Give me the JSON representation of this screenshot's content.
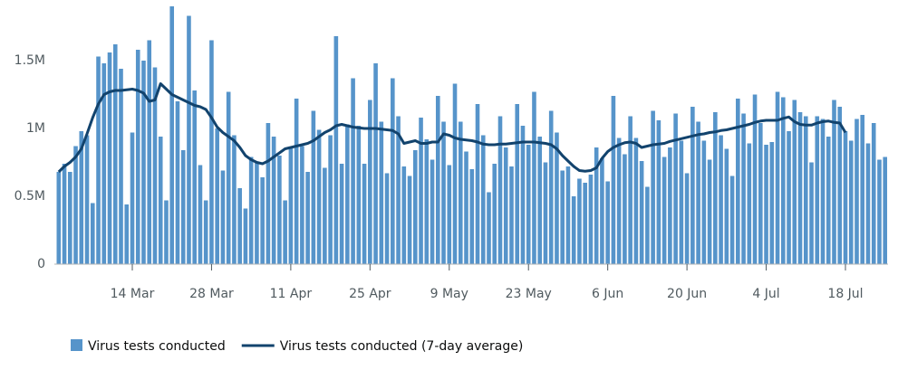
{
  "chart_data": {
    "type": "bar",
    "categories": [
      "1 Mar",
      "2 Mar",
      "3 Mar",
      "4 Mar",
      "5 Mar",
      "6 Mar",
      "7 Mar",
      "8 Mar",
      "9 Mar",
      "10 Mar",
      "11 Mar",
      "12 Mar",
      "13 Mar",
      "14 Mar",
      "15 Mar",
      "16 Mar",
      "17 Mar",
      "18 Mar",
      "19 Mar",
      "20 Mar",
      "21 Mar",
      "22 Mar",
      "23 Mar",
      "24 Mar",
      "25 Mar",
      "26 Mar",
      "27 Mar",
      "28 Mar",
      "29 Mar",
      "30 Mar",
      "31 Mar",
      "1 Apr",
      "2 Apr",
      "3 Apr",
      "4 Apr",
      "5 Apr",
      "6 Apr",
      "7 Apr",
      "8 Apr",
      "9 Apr",
      "10 Apr",
      "11 Apr",
      "12 Apr",
      "13 Apr",
      "14 Apr",
      "15 Apr",
      "16 Apr",
      "17 Apr",
      "18 Apr",
      "19 Apr",
      "20 Apr",
      "21 Apr",
      "22 Apr",
      "23 Apr",
      "24 Apr",
      "25 Apr",
      "26 Apr",
      "27 Apr",
      "28 Apr",
      "29 Apr",
      "30 Apr",
      "1 May",
      "2 May",
      "3 May",
      "4 May",
      "5 May",
      "6 May",
      "7 May",
      "8 May",
      "9 May",
      "10 May",
      "11 May",
      "12 May",
      "13 May",
      "14 May",
      "15 May",
      "16 May",
      "17 May",
      "18 May",
      "19 May",
      "20 May",
      "21 May",
      "22 May",
      "23 May",
      "24 May",
      "25 May",
      "26 May",
      "27 May",
      "28 May",
      "29 May",
      "30 May",
      "31 May",
      "1 Jun",
      "2 Jun",
      "3 Jun",
      "4 Jun",
      "5 Jun",
      "6 Jun",
      "7 Jun",
      "8 Jun",
      "9 Jun",
      "10 Jun",
      "11 Jun",
      "12 Jun",
      "13 Jun",
      "14 Jun",
      "15 Jun",
      "16 Jun",
      "17 Jun",
      "18 Jun",
      "19 Jun",
      "20 Jun",
      "21 Jun",
      "22 Jun",
      "23 Jun",
      "24 Jun",
      "25 Jun",
      "26 Jun",
      "27 Jun",
      "28 Jun",
      "29 Jun",
      "30 Jun",
      "1 Jul",
      "2 Jul",
      "3 Jul",
      "4 Jul",
      "5 Jul",
      "6 Jul",
      "7 Jul",
      "8 Jul",
      "9 Jul",
      "10 Jul",
      "11 Jul",
      "12 Jul",
      "13 Jul",
      "14 Jul",
      "15 Jul",
      "16 Jul",
      "17 Jul",
      "18 Jul",
      "19 Jul",
      "20 Jul",
      "21 Jul",
      "22 Jul",
      "23 Jul",
      "24 Jul",
      "25 Jul"
    ],
    "series": [
      {
        "name": "Virus tests conducted",
        "color": "#5694ca",
        "values": [
          680000,
          740000,
          680000,
          870000,
          980000,
          950000,
          450000,
          1530000,
          1480000,
          1560000,
          1620000,
          1440000,
          440000,
          970000,
          1580000,
          1500000,
          1650000,
          1450000,
          940000,
          470000,
          1900000,
          1200000,
          840000,
          1830000,
          1280000,
          730000,
          470000,
          1650000,
          1000000,
          690000,
          1270000,
          950000,
          560000,
          410000,
          790000,
          750000,
          640000,
          1040000,
          940000,
          800000,
          470000,
          860000,
          1220000,
          870000,
          680000,
          1130000,
          990000,
          710000,
          950000,
          1680000,
          740000,
          1030000,
          1370000,
          1020000,
          740000,
          1210000,
          1480000,
          1050000,
          670000,
          1370000,
          1090000,
          720000,
          650000,
          840000,
          1080000,
          920000,
          770000,
          1240000,
          1050000,
          730000,
          1330000,
          1050000,
          830000,
          700000,
          1180000,
          950000,
          530000,
          740000,
          1090000,
          860000,
          720000,
          1180000,
          1020000,
          880000,
          1270000,
          940000,
          750000,
          1130000,
          970000,
          690000,
          720000,
          500000,
          630000,
          600000,
          660000,
          860000,
          780000,
          610000,
          1240000,
          930000,
          810000,
          1090000,
          930000,
          760000,
          570000,
          1130000,
          1060000,
          790000,
          860000,
          1110000,
          910000,
          670000,
          1160000,
          1050000,
          910000,
          770000,
          1120000,
          950000,
          850000,
          650000,
          1220000,
          1110000,
          890000,
          1250000,
          1040000,
          880000,
          900000,
          1270000,
          1230000,
          980000,
          1210000,
          1120000,
          1090000,
          750000,
          1090000,
          1070000,
          940000,
          1210000,
          1160000,
          980000,
          910000,
          1070000,
          1100000,
          890000,
          1040000,
          770000,
          790000
        ]
      },
      {
        "name": "Virus tests conducted (7-day average)",
        "color": "#12436d",
        "type": "line",
        "values": [
          680000,
          720000,
          750000,
          790000,
          850000,
          960000,
          1080000,
          1180000,
          1250000,
          1270000,
          1280000,
          1280000,
          1285000,
          1290000,
          1280000,
          1260000,
          1200000,
          1210000,
          1330000,
          1290000,
          1250000,
          1230000,
          1210000,
          1190000,
          1170000,
          1160000,
          1140000,
          1080000,
          1010000,
          970000,
          940000,
          910000,
          860000,
          800000,
          770000,
          750000,
          740000,
          760000,
          790000,
          820000,
          850000,
          860000,
          870000,
          880000,
          890000,
          910000,
          940000,
          970000,
          990000,
          1020000,
          1030000,
          1020000,
          1010000,
          1005000,
          1000000,
          1000000,
          1000000,
          995000,
          990000,
          985000,
          960000,
          890000,
          900000,
          910000,
          890000,
          890000,
          900000,
          900000,
          960000,
          950000,
          930000,
          920000,
          915000,
          910000,
          900000,
          885000,
          880000,
          880000,
          885000,
          885000,
          890000,
          895000,
          900000,
          900000,
          900000,
          895000,
          890000,
          880000,
          850000,
          800000,
          760000,
          720000,
          690000,
          685000,
          690000,
          710000,
          780000,
          830000,
          860000,
          880000,
          895000,
          900000,
          890000,
          860000,
          870000,
          880000,
          885000,
          890000,
          905000,
          915000,
          925000,
          935000,
          945000,
          955000,
          960000,
          970000,
          975000,
          985000,
          990000,
          1000000,
          1010000,
          1020000,
          1030000,
          1045000,
          1055000,
          1060000,
          1060000,
          1060000,
          1075000,
          1085000,
          1050000,
          1030000,
          1025000,
          1025000,
          1040000,
          1050000,
          1055000,
          1045000,
          1040000,
          970000,
          null,
          null,
          null,
          null,
          null,
          null,
          null
        ]
      }
    ],
    "xticks": [
      "14 Mar",
      "28 Mar",
      "11 Apr",
      "25 Apr",
      "9 May",
      "23 May",
      "6 Jun",
      "20 Jun",
      "4 Jul",
      "18 Jul"
    ],
    "ylim": [
      0,
      1900000
    ],
    "yticks": [
      0,
      {
        "value": 500000,
        "label": "0.5M"
      },
      {
        "value": 1000000,
        "label": "1M"
      },
      {
        "value": 1500000,
        "label": "1.5M"
      }
    ],
    "grid": false,
    "legend": "bottom"
  }
}
